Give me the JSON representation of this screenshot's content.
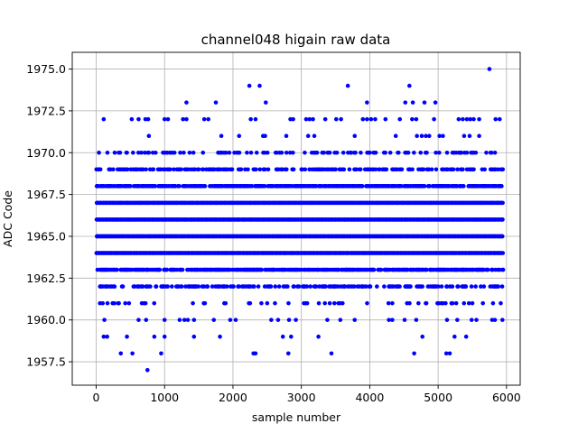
{
  "chart_data": {
    "type": "scatter",
    "title": "channel048 higain raw data",
    "xlabel": "sample number",
    "ylabel": "ADC Code",
    "xlim": [
      -350,
      6200
    ],
    "ylim": [
      1956.1,
      1976.0
    ],
    "xticks": [
      0,
      1000,
      2000,
      3000,
      4000,
      5000,
      6000
    ],
    "yticks": [
      1957.5,
      1960.0,
      1962.5,
      1965.0,
      1967.5,
      1970.0,
      1972.5,
      1975.0
    ],
    "xtick_labels": [
      "0",
      "1000",
      "2000",
      "3000",
      "4000",
      "5000",
      "6000"
    ],
    "ytick_labels": [
      "1957.5",
      "1960.0",
      "1962.5",
      "1965.0",
      "1967.5",
      "1970.0",
      "1972.5",
      "1975.0"
    ],
    "grid": true,
    "marker_color": "#0000ff",
    "n_samples": 5950,
    "dense_levels": [
      1961,
      1962,
      1963,
      1964,
      1965,
      1966,
      1967,
      1968,
      1969,
      1970
    ],
    "sparse_points": [
      {
        "x": 110,
        "y": 1972
      },
      {
        "x": 520,
        "y": 1972
      },
      {
        "x": 620,
        "y": 1972
      },
      {
        "x": 720,
        "y": 1972
      },
      {
        "x": 760,
        "y": 1972
      },
      {
        "x": 1000,
        "y": 1972
      },
      {
        "x": 1050,
        "y": 1972
      },
      {
        "x": 1270,
        "y": 1972
      },
      {
        "x": 1320,
        "y": 1972
      },
      {
        "x": 1580,
        "y": 1972
      },
      {
        "x": 1640,
        "y": 1972
      },
      {
        "x": 2260,
        "y": 1972
      },
      {
        "x": 2330,
        "y": 1972
      },
      {
        "x": 2840,
        "y": 1972
      },
      {
        "x": 2880,
        "y": 1972
      },
      {
        "x": 3070,
        "y": 1972
      },
      {
        "x": 3120,
        "y": 1972
      },
      {
        "x": 3170,
        "y": 1972
      },
      {
        "x": 3350,
        "y": 1972
      },
      {
        "x": 3510,
        "y": 1972
      },
      {
        "x": 3580,
        "y": 1972
      },
      {
        "x": 3900,
        "y": 1972
      },
      {
        "x": 3960,
        "y": 1972
      },
      {
        "x": 4020,
        "y": 1972
      },
      {
        "x": 4080,
        "y": 1972
      },
      {
        "x": 4230,
        "y": 1972
      },
      {
        "x": 4440,
        "y": 1972
      },
      {
        "x": 4620,
        "y": 1972
      },
      {
        "x": 4680,
        "y": 1972
      },
      {
        "x": 4940,
        "y": 1972
      },
      {
        "x": 5300,
        "y": 1972
      },
      {
        "x": 5360,
        "y": 1972
      },
      {
        "x": 5420,
        "y": 1972
      },
      {
        "x": 5470,
        "y": 1972
      },
      {
        "x": 5520,
        "y": 1972
      },
      {
        "x": 5600,
        "y": 1972
      },
      {
        "x": 5840,
        "y": 1972
      },
      {
        "x": 5900,
        "y": 1972
      },
      {
        "x": 1320,
        "y": 1973
      },
      {
        "x": 1750,
        "y": 1973
      },
      {
        "x": 2480,
        "y": 1973
      },
      {
        "x": 3960,
        "y": 1973
      },
      {
        "x": 4520,
        "y": 1973
      },
      {
        "x": 4630,
        "y": 1973
      },
      {
        "x": 4800,
        "y": 1973
      },
      {
        "x": 4960,
        "y": 1973
      },
      {
        "x": 2240,
        "y": 1974
      },
      {
        "x": 2390,
        "y": 1974
      },
      {
        "x": 3680,
        "y": 1974
      },
      {
        "x": 4580,
        "y": 1974
      },
      {
        "x": 5750,
        "y": 1975
      },
      {
        "x": 770,
        "y": 1971
      },
      {
        "x": 1830,
        "y": 1971
      },
      {
        "x": 2090,
        "y": 1971
      },
      {
        "x": 2440,
        "y": 1971
      },
      {
        "x": 2470,
        "y": 1971
      },
      {
        "x": 2780,
        "y": 1971
      },
      {
        "x": 3100,
        "y": 1971
      },
      {
        "x": 3190,
        "y": 1971
      },
      {
        "x": 3780,
        "y": 1971
      },
      {
        "x": 4380,
        "y": 1971
      },
      {
        "x": 4690,
        "y": 1971
      },
      {
        "x": 4760,
        "y": 1971
      },
      {
        "x": 4820,
        "y": 1971
      },
      {
        "x": 4870,
        "y": 1971
      },
      {
        "x": 5020,
        "y": 1971
      },
      {
        "x": 5070,
        "y": 1971
      },
      {
        "x": 5380,
        "y": 1971
      },
      {
        "x": 5460,
        "y": 1971
      },
      {
        "x": 5600,
        "y": 1971
      },
      {
        "x": 120,
        "y": 1960
      },
      {
        "x": 620,
        "y": 1960
      },
      {
        "x": 730,
        "y": 1960
      },
      {
        "x": 1000,
        "y": 1960
      },
      {
        "x": 1220,
        "y": 1960
      },
      {
        "x": 1290,
        "y": 1960
      },
      {
        "x": 1340,
        "y": 1960
      },
      {
        "x": 1430,
        "y": 1960
      },
      {
        "x": 1720,
        "y": 1960
      },
      {
        "x": 1960,
        "y": 1960
      },
      {
        "x": 2040,
        "y": 1960
      },
      {
        "x": 2560,
        "y": 1960
      },
      {
        "x": 2660,
        "y": 1960
      },
      {
        "x": 2820,
        "y": 1960
      },
      {
        "x": 2920,
        "y": 1960
      },
      {
        "x": 3380,
        "y": 1960
      },
      {
        "x": 3570,
        "y": 1960
      },
      {
        "x": 3780,
        "y": 1960
      },
      {
        "x": 4280,
        "y": 1960
      },
      {
        "x": 4330,
        "y": 1960
      },
      {
        "x": 4510,
        "y": 1960
      },
      {
        "x": 4680,
        "y": 1960
      },
      {
        "x": 5130,
        "y": 1960
      },
      {
        "x": 5280,
        "y": 1960
      },
      {
        "x": 5490,
        "y": 1960
      },
      {
        "x": 5560,
        "y": 1960
      },
      {
        "x": 5790,
        "y": 1960
      },
      {
        "x": 5830,
        "y": 1960
      },
      {
        "x": 5940,
        "y": 1960
      },
      {
        "x": 110,
        "y": 1959
      },
      {
        "x": 160,
        "y": 1959
      },
      {
        "x": 450,
        "y": 1959
      },
      {
        "x": 850,
        "y": 1959
      },
      {
        "x": 1000,
        "y": 1959
      },
      {
        "x": 1430,
        "y": 1959
      },
      {
        "x": 1810,
        "y": 1959
      },
      {
        "x": 2730,
        "y": 1959
      },
      {
        "x": 2850,
        "y": 1959
      },
      {
        "x": 3250,
        "y": 1959
      },
      {
        "x": 4770,
        "y": 1959
      },
      {
        "x": 5240,
        "y": 1959
      },
      {
        "x": 5410,
        "y": 1959
      },
      {
        "x": 360,
        "y": 1958
      },
      {
        "x": 530,
        "y": 1958
      },
      {
        "x": 950,
        "y": 1958
      },
      {
        "x": 2300,
        "y": 1958
      },
      {
        "x": 2330,
        "y": 1958
      },
      {
        "x": 2810,
        "y": 1958
      },
      {
        "x": 3440,
        "y": 1958
      },
      {
        "x": 4650,
        "y": 1958
      },
      {
        "x": 5120,
        "y": 1958
      },
      {
        "x": 5170,
        "y": 1958
      },
      {
        "x": 750,
        "y": 1957
      }
    ]
  }
}
